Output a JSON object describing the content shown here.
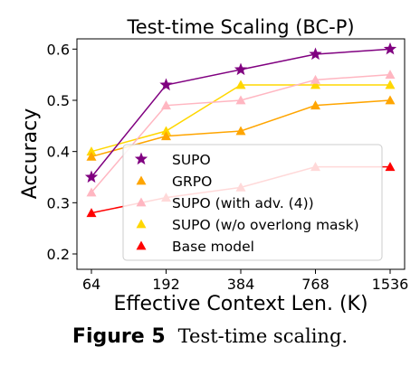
{
  "figure": {
    "label": "Figure 5",
    "caption": "Test-time scaling."
  },
  "chart_data": {
    "type": "line",
    "title": "Test-time Scaling (BC-P)",
    "xlabel": "Effective Context Len. (K)",
    "ylabel": "Accuracy",
    "categories": [
      "64",
      "192",
      "384",
      "768",
      "1536"
    ],
    "ylim": [
      0.17,
      0.62
    ],
    "yticks": [
      0.2,
      0.3,
      0.4,
      0.5,
      0.6
    ],
    "ytick_labels": [
      "0.2",
      "0.3",
      "0.4",
      "0.5",
      "0.6"
    ],
    "grid": false,
    "legend_position": "bottom-right",
    "series": [
      {
        "name": "SUPO",
        "values": [
          0.35,
          0.53,
          0.56,
          0.59,
          0.6
        ],
        "color": "#800080",
        "marker": "star"
      },
      {
        "name": "GRPO",
        "values": [
          0.39,
          0.43,
          0.44,
          0.49,
          0.5
        ],
        "color": "#ffa500",
        "marker": "triangle"
      },
      {
        "name": "SUPO (with adv. (4))",
        "values": [
          0.32,
          0.49,
          0.5,
          0.54,
          0.55
        ],
        "color": "#ffb6c1",
        "marker": "triangle"
      },
      {
        "name": "SUPO (w/o overlong mask)",
        "values": [
          0.4,
          0.44,
          0.53,
          0.53,
          0.53
        ],
        "color": "#ffd700",
        "marker": "triangle"
      },
      {
        "name": "Base model",
        "values": [
          0.28,
          0.31,
          0.33,
          0.37,
          0.37
        ],
        "color": "#ff0000",
        "marker": "triangle"
      }
    ]
  }
}
